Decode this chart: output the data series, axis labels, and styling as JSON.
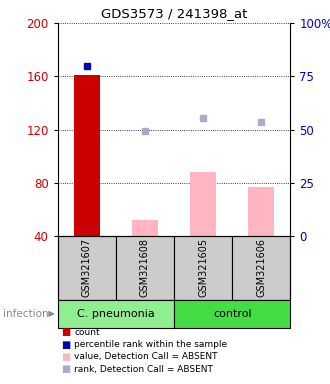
{
  "title": "GDS3573 / 241398_at",
  "samples": [
    "GSM321607",
    "GSM321608",
    "GSM321605",
    "GSM321606"
  ],
  "left_ylim": [
    40,
    200
  ],
  "left_yticks": [
    40,
    80,
    120,
    160,
    200
  ],
  "right_ylim": [
    0,
    100
  ],
  "right_yticks": [
    0,
    25,
    50,
    75,
    100
  ],
  "left_color": "#CC0000",
  "right_color": "#0000CC",
  "count_values": [
    161,
    null,
    null,
    null
  ],
  "count_color": "#CC0000",
  "percentile_values": [
    80,
    null,
    null,
    null
  ],
  "percentile_color": "#0000BB",
  "absent_value_bars": [
    null,
    52,
    88,
    77
  ],
  "absent_value_color": "#FFB6C1",
  "absent_rank_dots_left": [
    null,
    119,
    129,
    126
  ],
  "absent_rank_color": "#AAAACC",
  "bar_width": 0.45,
  "sample_box_color": "#CCCCCC",
  "cpneumonia_color": "#90EE90",
  "control_color": "#44DD44",
  "legend_items": [
    {
      "label": "count",
      "color": "#CC0000"
    },
    {
      "label": "percentile rank within the sample",
      "color": "#0000BB"
    },
    {
      "label": "value, Detection Call = ABSENT",
      "color": "#FFB6C1"
    },
    {
      "label": "rank, Detection Call = ABSENT",
      "color": "#AAAACC"
    }
  ]
}
